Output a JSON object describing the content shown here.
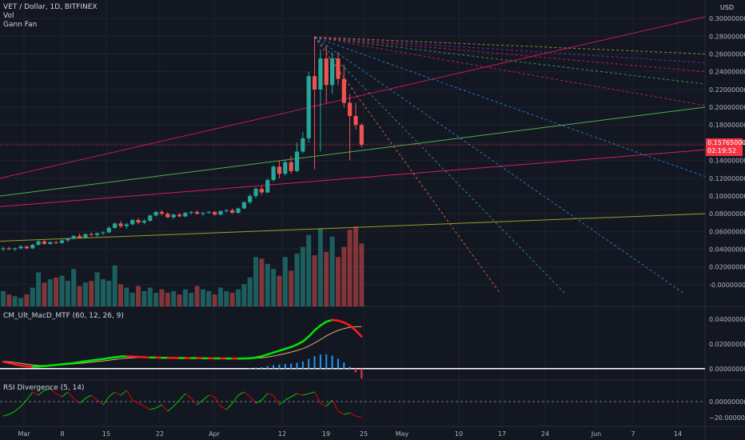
{
  "header": {
    "symbol_line": "VET / Dollar, 1D, BITFINEX",
    "vol_label": "Vol",
    "gann_label": "Gann Fan",
    "currency": "USD"
  },
  "price_badge": {
    "price": "0.15765000",
    "countdown": "02:19:52",
    "color": "#f23645"
  },
  "macd_pane": {
    "label": "CM_Ult_MacD_MTF (60, 12, 26, 9)"
  },
  "rsi_pane": {
    "label": "RSI Divergence (5, 14)"
  },
  "chart_data": [
    {
      "type": "candlestick",
      "title": "VET / Dollar, 1D, BITFINEX",
      "ylabel": "USD",
      "y_ticks": [
        "0.30000000",
        "0.28000000",
        "0.26000000",
        "0.24000000",
        "0.22000000",
        "0.20000000",
        "0.18000000",
        "0.16000000",
        "0.14000000",
        "0.12000000",
        "0.10000000",
        "0.08000000",
        "0.06000000",
        "0.04000000",
        "0.02000000",
        "-0.00000000"
      ],
      "x_ticks": [
        "Mar",
        "8",
        "15",
        "22",
        "Apr",
        "12",
        "19",
        "25",
        "May",
        "10",
        "17",
        "24",
        "Jun",
        "7",
        "14"
      ],
      "ylim": [
        -0.01,
        0.31
      ],
      "candles": [
        {
          "o": 0.04,
          "h": 0.043,
          "l": 0.038,
          "c": 0.041
        },
        {
          "o": 0.041,
          "h": 0.043,
          "l": 0.039,
          "c": 0.04
        },
        {
          "o": 0.04,
          "h": 0.042,
          "l": 0.038,
          "c": 0.041
        },
        {
          "o": 0.041,
          "h": 0.045,
          "l": 0.04,
          "c": 0.043
        },
        {
          "o": 0.043,
          "h": 0.044,
          "l": 0.04,
          "c": 0.041
        },
        {
          "o": 0.041,
          "h": 0.046,
          "l": 0.04,
          "c": 0.045
        },
        {
          "o": 0.045,
          "h": 0.05,
          "l": 0.044,
          "c": 0.049
        },
        {
          "o": 0.049,
          "h": 0.05,
          "l": 0.045,
          "c": 0.046
        },
        {
          "o": 0.046,
          "h": 0.049,
          "l": 0.045,
          "c": 0.048
        },
        {
          "o": 0.048,
          "h": 0.049,
          "l": 0.046,
          "c": 0.047
        },
        {
          "o": 0.047,
          "h": 0.051,
          "l": 0.046,
          "c": 0.05
        },
        {
          "o": 0.05,
          "h": 0.053,
          "l": 0.048,
          "c": 0.052
        },
        {
          "o": 0.052,
          "h": 0.056,
          "l": 0.051,
          "c": 0.055
        },
        {
          "o": 0.055,
          "h": 0.058,
          "l": 0.052,
          "c": 0.053
        },
        {
          "o": 0.053,
          "h": 0.058,
          "l": 0.052,
          "c": 0.057
        },
        {
          "o": 0.057,
          "h": 0.059,
          "l": 0.055,
          "c": 0.056
        },
        {
          "o": 0.056,
          "h": 0.059,
          "l": 0.054,
          "c": 0.058
        },
        {
          "o": 0.058,
          "h": 0.06,
          "l": 0.056,
          "c": 0.059
        },
        {
          "o": 0.059,
          "h": 0.066,
          "l": 0.058,
          "c": 0.064
        },
        {
          "o": 0.064,
          "h": 0.07,
          "l": 0.063,
          "c": 0.069
        },
        {
          "o": 0.069,
          "h": 0.072,
          "l": 0.064,
          "c": 0.066
        },
        {
          "o": 0.066,
          "h": 0.07,
          "l": 0.063,
          "c": 0.068
        },
        {
          "o": 0.068,
          "h": 0.074,
          "l": 0.067,
          "c": 0.073
        },
        {
          "o": 0.073,
          "h": 0.075,
          "l": 0.068,
          "c": 0.07
        },
        {
          "o": 0.07,
          "h": 0.074,
          "l": 0.068,
          "c": 0.072
        },
        {
          "o": 0.072,
          "h": 0.079,
          "l": 0.071,
          "c": 0.078
        },
        {
          "o": 0.078,
          "h": 0.083,
          "l": 0.077,
          "c": 0.082
        },
        {
          "o": 0.082,
          "h": 0.084,
          "l": 0.078,
          "c": 0.08
        },
        {
          "o": 0.08,
          "h": 0.082,
          "l": 0.075,
          "c": 0.076
        },
        {
          "o": 0.076,
          "h": 0.08,
          "l": 0.074,
          "c": 0.079
        },
        {
          "o": 0.079,
          "h": 0.081,
          "l": 0.076,
          "c": 0.077
        },
        {
          "o": 0.077,
          "h": 0.082,
          "l": 0.076,
          "c": 0.081
        },
        {
          "o": 0.081,
          "h": 0.083,
          "l": 0.079,
          "c": 0.082
        },
        {
          "o": 0.082,
          "h": 0.084,
          "l": 0.079,
          "c": 0.08
        },
        {
          "o": 0.08,
          "h": 0.082,
          "l": 0.077,
          "c": 0.081
        },
        {
          "o": 0.081,
          "h": 0.083,
          "l": 0.08,
          "c": 0.082
        },
        {
          "o": 0.082,
          "h": 0.083,
          "l": 0.078,
          "c": 0.079
        },
        {
          "o": 0.079,
          "h": 0.084,
          "l": 0.078,
          "c": 0.083
        },
        {
          "o": 0.083,
          "h": 0.085,
          "l": 0.081,
          "c": 0.084
        },
        {
          "o": 0.084,
          "h": 0.086,
          "l": 0.08,
          "c": 0.081
        },
        {
          "o": 0.081,
          "h": 0.087,
          "l": 0.08,
          "c": 0.086
        },
        {
          "o": 0.086,
          "h": 0.094,
          "l": 0.085,
          "c": 0.093
        },
        {
          "o": 0.093,
          "h": 0.102,
          "l": 0.091,
          "c": 0.1
        },
        {
          "o": 0.1,
          "h": 0.11,
          "l": 0.097,
          "c": 0.108
        },
        {
          "o": 0.108,
          "h": 0.112,
          "l": 0.101,
          "c": 0.104
        },
        {
          "o": 0.104,
          "h": 0.12,
          "l": 0.103,
          "c": 0.118
        },
        {
          "o": 0.118,
          "h": 0.135,
          "l": 0.116,
          "c": 0.133
        },
        {
          "o": 0.133,
          "h": 0.14,
          "l": 0.12,
          "c": 0.125
        },
        {
          "o": 0.125,
          "h": 0.14,
          "l": 0.123,
          "c": 0.138
        },
        {
          "o": 0.138,
          "h": 0.145,
          "l": 0.125,
          "c": 0.128
        },
        {
          "o": 0.128,
          "h": 0.16,
          "l": 0.127,
          "c": 0.15
        },
        {
          "o": 0.15,
          "h": 0.172,
          "l": 0.148,
          "c": 0.165
        },
        {
          "o": 0.165,
          "h": 0.24,
          "l": 0.16,
          "c": 0.235
        },
        {
          "o": 0.235,
          "h": 0.28,
          "l": 0.13,
          "c": 0.22
        },
        {
          "o": 0.22,
          "h": 0.265,
          "l": 0.15,
          "c": 0.255
        },
        {
          "o": 0.255,
          "h": 0.27,
          "l": 0.205,
          "c": 0.225
        },
        {
          "o": 0.225,
          "h": 0.262,
          "l": 0.215,
          "c": 0.255
        },
        {
          "o": 0.255,
          "h": 0.262,
          "l": 0.225,
          "c": 0.232
        },
        {
          "o": 0.232,
          "h": 0.248,
          "l": 0.2,
          "c": 0.205
        },
        {
          "o": 0.205,
          "h": 0.215,
          "l": 0.14,
          "c": 0.19
        },
        {
          "o": 0.19,
          "h": 0.205,
          "l": 0.175,
          "c": 0.18
        },
        {
          "o": 0.18,
          "h": 0.182,
          "l": 0.155,
          "c": 0.1577
        }
      ]
    },
    {
      "type": "bar",
      "title": "Vol",
      "note": "relative volume, same dates as candles",
      "values": [
        18,
        14,
        12,
        10,
        14,
        22,
        40,
        28,
        32,
        34,
        36,
        30,
        44,
        24,
        28,
        30,
        40,
        32,
        30,
        48,
        26,
        22,
        16,
        24,
        18,
        22,
        16,
        20,
        16,
        18,
        14,
        20,
        16,
        24,
        20,
        18,
        14,
        22,
        18,
        16,
        20,
        26,
        34,
        58,
        56,
        50,
        44,
        36,
        58,
        42,
        62,
        70,
        84,
        60,
        92,
        64,
        82,
        58,
        70,
        90,
        94,
        74
      ]
    },
    {
      "type": "line",
      "title": "CM_Ult_MacD_MTF (60, 12, 26, 9)",
      "y_ticks": [
        "0.04000000",
        "0.02000000",
        "0.00000000"
      ],
      "ylim": [
        -0.006,
        0.044
      ],
      "macd": [
        0.0055,
        0.0045,
        0.0035,
        0.0025,
        0.0018,
        0.0015,
        0.0016,
        0.002,
        0.0025,
        0.003,
        0.0035,
        0.004,
        0.0045,
        0.0052,
        0.006,
        0.0066,
        0.0072,
        0.0078,
        0.0085,
        0.0092,
        0.0098,
        0.01,
        0.0098,
        0.0095,
        0.0093,
        0.009,
        0.009,
        0.0088,
        0.0088,
        0.0087,
        0.0086,
        0.0086,
        0.0085,
        0.0085,
        0.0084,
        0.0084,
        0.0083,
        0.0083,
        0.0082,
        0.0082,
        0.0081,
        0.0082,
        0.0084,
        0.009,
        0.01,
        0.0115,
        0.013,
        0.0145,
        0.016,
        0.0175,
        0.0195,
        0.022,
        0.026,
        0.031,
        0.035,
        0.038,
        0.0395,
        0.039,
        0.0375,
        0.035,
        0.031,
        0.026
      ],
      "signal": [
        0.006,
        0.0055,
        0.005,
        0.0043,
        0.0036,
        0.003,
        0.0026,
        0.0025,
        0.0025,
        0.0027,
        0.003,
        0.0034,
        0.0038,
        0.0042,
        0.0047,
        0.0052,
        0.0057,
        0.0062,
        0.0068,
        0.0074,
        0.008,
        0.0085,
        0.0088,
        0.009,
        0.009,
        0.009,
        0.009,
        0.0089,
        0.0089,
        0.0088,
        0.0088,
        0.0087,
        0.0087,
        0.0086,
        0.0086,
        0.0085,
        0.0085,
        0.0084,
        0.0084,
        0.0083,
        0.0083,
        0.0083,
        0.0083,
        0.0085,
        0.0088,
        0.0094,
        0.0102,
        0.0112,
        0.0122,
        0.0134,
        0.0147,
        0.0162,
        0.0182,
        0.0208,
        0.0236,
        0.0265,
        0.029,
        0.031,
        0.0325,
        0.0335,
        0.034,
        0.034
      ],
      "histogram": [
        0,
        0,
        0,
        0,
        0,
        0,
        0,
        0,
        0,
        0,
        0,
        0,
        0,
        0,
        0,
        0,
        0,
        0,
        0,
        0,
        0,
        0,
        0,
        0,
        0,
        0,
        0,
        0,
        0,
        0,
        0,
        0,
        0,
        0,
        0,
        0,
        0,
        0,
        0,
        0,
        0,
        0,
        0.0004,
        0.0008,
        0.0012,
        0.0021,
        0.0028,
        0.0033,
        0.0038,
        0.0041,
        0.0048,
        0.0058,
        0.0078,
        0.0102,
        0.0114,
        0.0115,
        0.0105,
        0.008,
        0.005,
        0.0015,
        -0.003,
        -0.008
      ]
    },
    {
      "type": "line",
      "title": "RSI Divergence (5, 14)",
      "y_ticks": [
        "0.00000000",
        "−20.00000000"
      ],
      "ylim": [
        -28,
        22
      ],
      "values": [
        -18,
        -16,
        -12,
        -6,
        2,
        12,
        8,
        14,
        16,
        10,
        6,
        12,
        4,
        -2,
        4,
        8,
        2,
        -4,
        6,
        12,
        8,
        14,
        2,
        -2,
        -6,
        -10,
        -8,
        -4,
        -12,
        -6,
        2,
        10,
        4,
        -4,
        2,
        8,
        6,
        -6,
        -10,
        -2,
        8,
        12,
        6,
        -2,
        2,
        10,
        8,
        -4,
        2,
        6,
        10,
        8,
        10,
        12,
        -2,
        -6,
        2,
        -12,
        -16,
        -14,
        -18,
        -20
      ]
    }
  ]
}
